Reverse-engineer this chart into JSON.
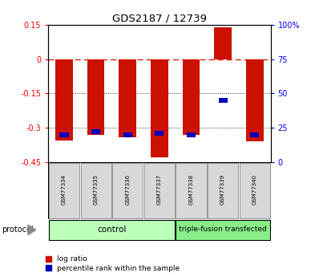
{
  "title": "GDS2187 / 12739",
  "samples": [
    "GSM77334",
    "GSM77335",
    "GSM77336",
    "GSM77337",
    "GSM77338",
    "GSM77339",
    "GSM77340"
  ],
  "log_ratios": [
    -0.355,
    -0.33,
    -0.34,
    -0.43,
    -0.33,
    0.14,
    -0.36
  ],
  "percentile_ranks": [
    20,
    22,
    20,
    21,
    20,
    45,
    20
  ],
  "groups": [
    {
      "label": "control",
      "indices": [
        0,
        1,
        2,
        3
      ],
      "color": "#bbffbb"
    },
    {
      "label": "triple-fusion transfected",
      "indices": [
        4,
        5,
        6
      ],
      "color": "#88ee88"
    }
  ],
  "ylim_left": [
    -0.45,
    0.15
  ],
  "ylim_right": [
    0,
    100
  ],
  "yticks_left": [
    0.15,
    0.0,
    -0.15,
    -0.3,
    -0.45
  ],
  "ytick_labels_left": [
    "0.15",
    "0",
    "-0.15",
    "-0.3",
    "-0.45"
  ],
  "yticks_right": [
    100,
    75,
    50,
    25,
    0
  ],
  "ytick_labels_right": [
    "100%",
    "75",
    "50",
    "25",
    "0"
  ],
  "bar_color_red": "#cc1100",
  "bar_color_blue": "#0000bb",
  "zero_line_color": "#dd2200",
  "grid_color": "#333333",
  "bar_width": 0.55,
  "protocol_label": "protocol",
  "legend_items": [
    {
      "label": "log ratio",
      "color": "#cc1100"
    },
    {
      "label": "percentile rank within the sample",
      "color": "#0000bb"
    }
  ]
}
